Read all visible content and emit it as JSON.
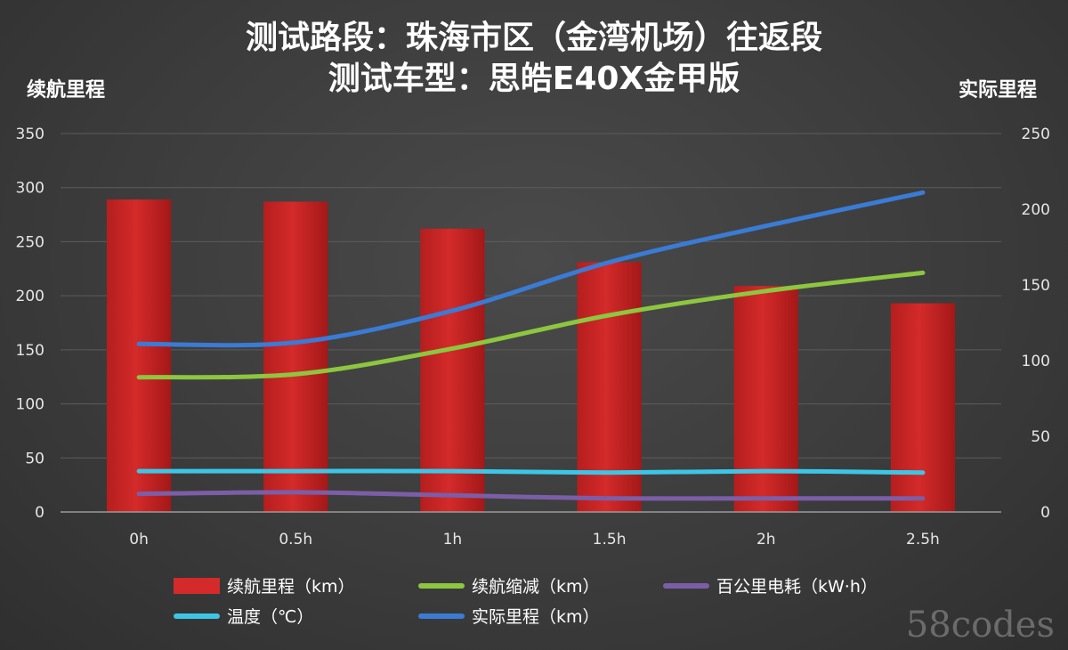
{
  "chart_data": {
    "type": "bar",
    "title": "测试路段：珠海市区（金湾机场）往返段",
    "subtitle": "测试车型：思皓E40X金甲版",
    "ylabel": "续航里程",
    "y2label": "实际里程",
    "ylim": [
      0,
      350
    ],
    "y2lim": [
      0,
      250
    ],
    "yticks": [
      0,
      50,
      100,
      150,
      200,
      250,
      300,
      350
    ],
    "y2ticks": [
      0,
      50,
      100,
      150,
      200,
      250
    ],
    "grid": true,
    "legend_position": "bottom",
    "categories": [
      "0h",
      "0.5h",
      "1h",
      "1.5h",
      "2h",
      "2.5h"
    ],
    "series": [
      {
        "name": "续航里程（km）",
        "type": "bar",
        "axis": "left",
        "color": "#d42a2a",
        "values": [
          289,
          287,
          262,
          231,
          209,
          193
        ]
      },
      {
        "name": "续航缩减（km）",
        "type": "line",
        "axis": "right",
        "color": "#8dc63f",
        "values": [
          89,
          91,
          108,
          130,
          146,
          158
        ]
      },
      {
        "name": "百公里电耗（kW·h）",
        "type": "line",
        "axis": "right",
        "color": "#7b5ea7",
        "values": [
          12,
          13,
          11,
          9,
          9,
          9
        ]
      },
      {
        "name": "温度（℃）",
        "type": "line",
        "axis": "right",
        "color": "#3cc6e6",
        "values": [
          27,
          27,
          27,
          26,
          27,
          26
        ]
      },
      {
        "name": "实际里程（km）",
        "type": "line",
        "axis": "right",
        "color": "#3a7bd5",
        "values": [
          111,
          112,
          133,
          165,
          189,
          211
        ]
      }
    ]
  },
  "watermark": "58codes"
}
